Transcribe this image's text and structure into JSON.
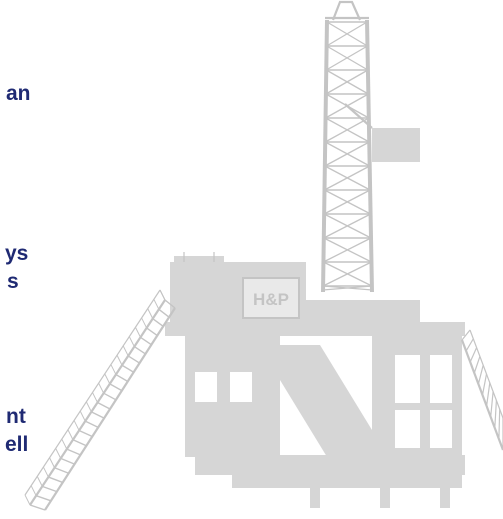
{
  "fragments": [
    "an",
    "ys",
    "s",
    "nt",
    "ell"
  ],
  "logo_text": "H&P",
  "colors": {
    "text": "#1f2a73",
    "rig_fill": "#d6d6d6",
    "rig_stroke": "#c4c4c4",
    "background": "#ffffff"
  }
}
